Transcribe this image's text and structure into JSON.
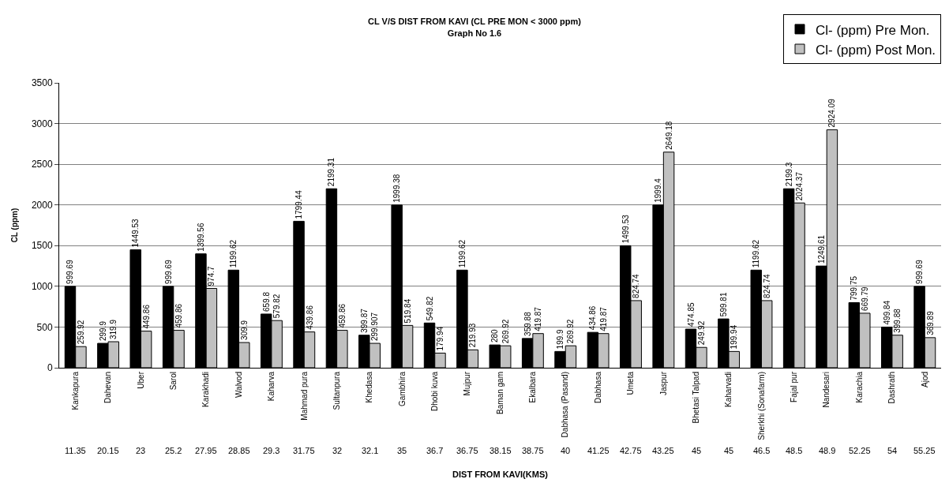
{
  "chart_data": {
    "type": "bar",
    "title": "CL V/S DIST FROM KAVI (CL PRE MON < 3000 ppm)",
    "subtitle": "Graph No 1.6",
    "xlabel": "DIST FROM KAVI(KMS)",
    "ylabel": "CL (ppm)",
    "categories": [
      "Kankapura",
      "Dahevan",
      "Uber",
      "Sarol",
      "Karakhadi",
      "Walvod",
      "Kaharva",
      "Mahmad pura",
      "Sultanpura",
      "Khedasa",
      "Gambhira",
      "Dhobi kuva",
      "Mujpur",
      "Baman gam",
      "Ekalbara",
      "Dabhasa (Pasand)",
      "Dabhasa",
      "Umeta",
      "Jaspur",
      "Bhetasi Talpad",
      "Kaharvadi",
      "Sherkhi (Sonafarm)",
      "Fajal pur",
      "Nandesari",
      "Karachia",
      "Dashrath",
      "Ajod"
    ],
    "series": [
      {
        "name": "Cl- (ppm) Pre Mon.",
        "color": "#000000",
        "values": [
          999.69,
          299.9,
          1449.53,
          999.69,
          1399.56,
          1199.62,
          659.8,
          1799.44,
          2199.31,
          399.87,
          1999.38,
          549.82,
          1199.62,
          280,
          359.88,
          199.9,
          434.86,
          1499.53,
          1999.4,
          474.85,
          599.81,
          1199.62,
          2199.3,
          1249.61,
          799.75,
          499.84,
          999.69
        ]
      },
      {
        "name": "Cl- (ppm) Post Mon.",
        "color": "#c0c0c0",
        "values": [
          259.92,
          319.9,
          449.86,
          459.86,
          974.7,
          309.9,
          579.82,
          439.86,
          459.86,
          299.907,
          519.84,
          179.94,
          219.93,
          269.92,
          419.87,
          269.92,
          419.87,
          824.74,
          2649.18,
          249.92,
          199.94,
          824.74,
          2024.37,
          2924.09,
          669.79,
          399.88,
          369.89
        ]
      }
    ],
    "annotations": [
      "11.35",
      "20.15",
      "23",
      "25.2",
      "27.95",
      "28.85",
      "29.3",
      "31.75",
      "32",
      "32.1",
      "35",
      "36.7",
      "36.75",
      "38.15",
      "38.75",
      "40",
      "41.25",
      "42.75",
      "43.25",
      "45",
      "45",
      "46.5",
      "48.5",
      "48.9",
      "52.25",
      "54",
      "55.25"
    ],
    "ylim": [
      0,
      3500
    ],
    "yticks": [
      0,
      500,
      1000,
      1500,
      2000,
      2500,
      3000,
      3500
    ],
    "grid": "y",
    "legend": "top right",
    "data_labels": true
  }
}
